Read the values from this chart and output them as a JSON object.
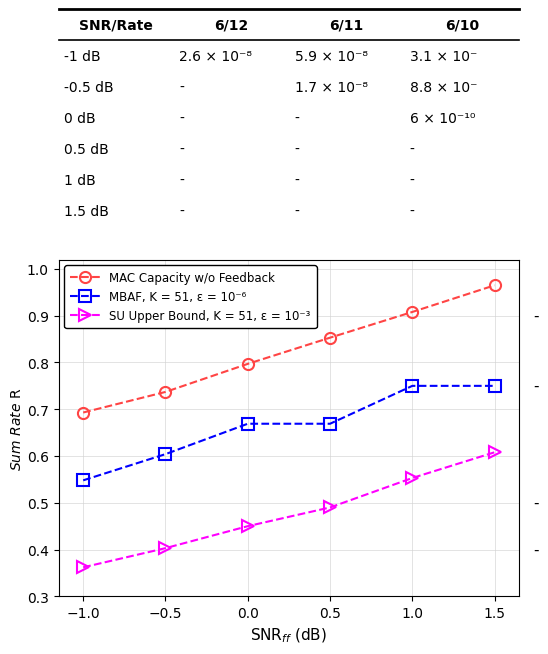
{
  "table": {
    "header": [
      "SNR/Rate",
      "6/12",
      "6/11",
      "6/10"
    ],
    "rows": [
      [
        "-1 dB",
        "2.6 × 10⁻⁸",
        "5.9 × 10⁻⁸",
        "3.1 × 10⁻"
      ],
      [
        "-0.5 dB",
        "-",
        "1.7 × 10⁻⁸",
        "8.8 × 10⁻"
      ],
      [
        "0 dB",
        "-",
        "-",
        "6 × 10⁻¹⁰"
      ],
      [
        "0.5 dB",
        "-",
        "-",
        "-"
      ],
      [
        "1 dB",
        "-",
        "-",
        "-"
      ],
      [
        "1.5 dB",
        "-",
        "-",
        "-"
      ]
    ]
  },
  "plot": {
    "snr_values": [
      -1,
      -0.5,
      0,
      0.5,
      1,
      1.5
    ],
    "mac_capacity": [
      0.693,
      0.737,
      0.797,
      0.853,
      0.908,
      0.965
    ],
    "mbaf": [
      0.548,
      0.604,
      0.669,
      0.669,
      0.75,
      0.75
    ],
    "su_upper": [
      0.362,
      0.403,
      0.45,
      0.49,
      0.553,
      0.608
    ],
    "mac_color": "#FF4444",
    "mbaf_color": "#0000FF",
    "su_color": "#FF00FF",
    "xlabel": "SNR$_{ff}$ (dB)",
    "xlim": [
      -1.15,
      1.65
    ],
    "ylim": [
      0.3,
      1.02
    ],
    "yticks": [
      0.3,
      0.4,
      0.5,
      0.6,
      0.7,
      0.8,
      0.9,
      1.0
    ],
    "xticks": [
      -1,
      -0.5,
      0,
      0.5,
      1,
      1.5
    ],
    "legend_labels": [
      "MAC Capacity w/o Feedback",
      "MBAF, K = 51, ε = 10⁻⁶",
      "SU Upper Bound, K = 51, ε = 10⁻³"
    ],
    "right_dashes": [
      [
        0.9,
        "-"
      ],
      [
        0.75,
        "-"
      ],
      [
        0.5,
        "-"
      ],
      [
        0.4,
        "-"
      ]
    ]
  }
}
